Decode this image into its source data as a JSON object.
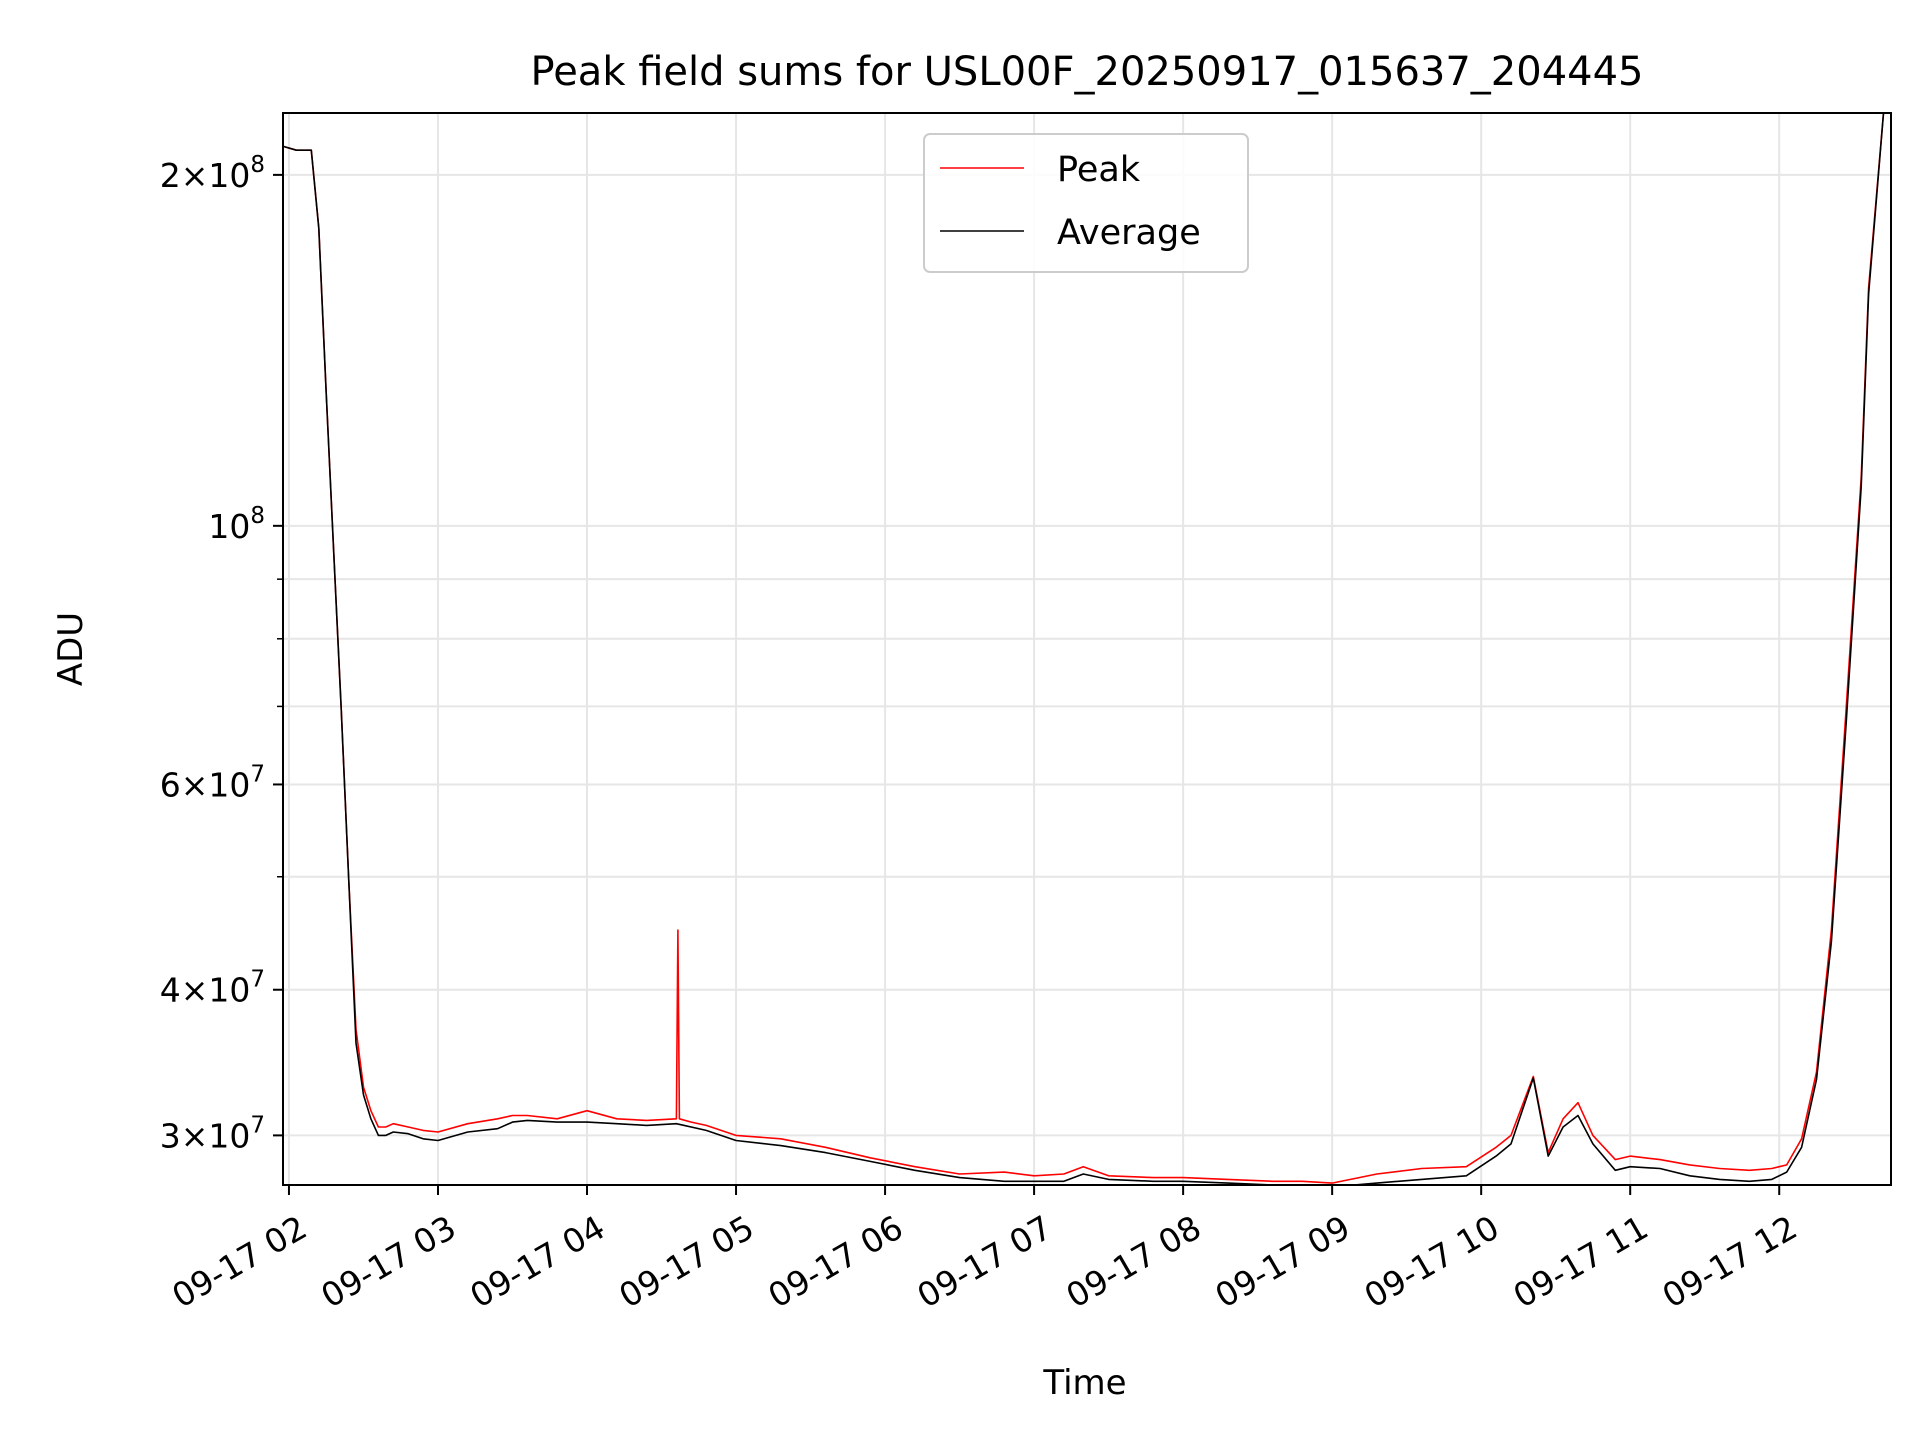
{
  "chart_data": {
    "type": "line",
    "title": "Peak field sums for USL00F_20250917_015637_204445",
    "xlabel": "Time",
    "ylabel": "ADU",
    "yscale": "log",
    "xlim": [
      1.96,
      12.75
    ],
    "ylim": [
      27200000,
      226000000
    ],
    "x_unit": "hours (09-17)",
    "x_ticks": [
      {
        "value": 2,
        "label": "09-17 02"
      },
      {
        "value": 3,
        "label": "09-17 03"
      },
      {
        "value": 4,
        "label": "09-17 04"
      },
      {
        "value": 5,
        "label": "09-17 05"
      },
      {
        "value": 6,
        "label": "09-17 06"
      },
      {
        "value": 7,
        "label": "09-17 07"
      },
      {
        "value": 8,
        "label": "09-17 08"
      },
      {
        "value": 9,
        "label": "09-17 09"
      },
      {
        "value": 10,
        "label": "09-17 10"
      },
      {
        "value": 11,
        "label": "09-17 11"
      },
      {
        "value": 12,
        "label": "09-17 12"
      }
    ],
    "y_major_ticks": [
      {
        "value": 30000000,
        "mantissa": "3",
        "exponent": "7"
      },
      {
        "value": 40000000,
        "mantissa": "4",
        "exponent": "7"
      },
      {
        "value": 60000000,
        "mantissa": "6",
        "exponent": "7"
      },
      {
        "value": 100000000,
        "mantissa": "",
        "exponent": "8"
      },
      {
        "value": 200000000,
        "mantissa": "2",
        "exponent": "8"
      }
    ],
    "y_minor_gridlines": [
      50000000,
      70000000,
      80000000,
      90000000
    ],
    "grid": true,
    "legend_position": "top-center",
    "series": [
      {
        "name": "Peak",
        "color": "#ff0000",
        "x": [
          1.94,
          2.05,
          2.15,
          2.2,
          2.25,
          2.3,
          2.35,
          2.4,
          2.45,
          2.5,
          2.55,
          2.6,
          2.65,
          2.7,
          2.8,
          2.9,
          3.0,
          3.2,
          3.4,
          3.5,
          3.6,
          3.8,
          4.0,
          4.2,
          4.4,
          4.6,
          4.61,
          4.62,
          4.7,
          4.8,
          5.0,
          5.3,
          5.6,
          5.9,
          6.2,
          6.5,
          6.8,
          7.0,
          7.2,
          7.33,
          7.5,
          7.8,
          8.0,
          8.3,
          8.6,
          8.8,
          9.0,
          9.3,
          9.6,
          9.9,
          10.1,
          10.2,
          10.35,
          10.45,
          10.55,
          10.65,
          10.75,
          10.9,
          11.0,
          11.2,
          11.4,
          11.6,
          11.8,
          11.95,
          12.05,
          12.15,
          12.25,
          12.35,
          12.45,
          12.55,
          12.6,
          12.7
        ],
        "y": [
          212000000,
          210000000,
          210000000,
          180000000,
          130000000,
          95000000,
          70000000,
          50000000,
          37000000,
          33000000,
          31500000,
          30500000,
          30500000,
          30700000,
          30500000,
          30300000,
          30200000,
          30700000,
          31000000,
          31200000,
          31200000,
          31000000,
          31500000,
          31000000,
          30900000,
          31000000,
          45000000,
          31000000,
          30800000,
          30600000,
          30000000,
          29800000,
          29300000,
          28700000,
          28200000,
          27800000,
          27900000,
          27700000,
          27800000,
          28200000,
          27700000,
          27600000,
          27600000,
          27500000,
          27400000,
          27400000,
          27300000,
          27800000,
          28100000,
          28200000,
          29300000,
          30000000,
          33700000,
          29000000,
          31000000,
          32000000,
          30000000,
          28600000,
          28800000,
          28600000,
          28300000,
          28100000,
          28000000,
          28100000,
          28300000,
          29800000,
          34000000,
          45000000,
          70000000,
          110000000,
          160000000,
          226000000
        ]
      },
      {
        "name": "Average",
        "color": "#000000",
        "x": [
          1.94,
          2.05,
          2.15,
          2.2,
          2.25,
          2.3,
          2.35,
          2.4,
          2.45,
          2.5,
          2.55,
          2.6,
          2.65,
          2.7,
          2.8,
          2.9,
          3.0,
          3.2,
          3.4,
          3.5,
          3.6,
          3.8,
          4.0,
          4.2,
          4.4,
          4.6,
          4.8,
          5.0,
          5.3,
          5.6,
          5.9,
          6.2,
          6.5,
          6.8,
          7.0,
          7.2,
          7.33,
          7.5,
          7.8,
          8.0,
          8.3,
          8.6,
          8.8,
          9.0,
          9.3,
          9.6,
          9.9,
          10.1,
          10.2,
          10.35,
          10.45,
          10.55,
          10.65,
          10.75,
          10.9,
          11.0,
          11.2,
          11.4,
          11.6,
          11.8,
          11.95,
          12.05,
          12.15,
          12.25,
          12.35,
          12.45,
          12.55,
          12.6,
          12.7
        ],
        "y": [
          212000000,
          210000000,
          210000000,
          180000000,
          130000000,
          95000000,
          70000000,
          50000000,
          36000000,
          32500000,
          31000000,
          30000000,
          30000000,
          30200000,
          30100000,
          29800000,
          29700000,
          30200000,
          30400000,
          30800000,
          30900000,
          30800000,
          30800000,
          30700000,
          30600000,
          30700000,
          30300000,
          29700000,
          29400000,
          29000000,
          28500000,
          28000000,
          27600000,
          27400000,
          27400000,
          27400000,
          27800000,
          27500000,
          27400000,
          27400000,
          27300000,
          27200000,
          27200000,
          27100000,
          27300000,
          27500000,
          27700000,
          28800000,
          29500000,
          33600000,
          28800000,
          30500000,
          31200000,
          29500000,
          28000000,
          28200000,
          28100000,
          27700000,
          27500000,
          27400000,
          27500000,
          27900000,
          29300000,
          33500000,
          44000000,
          68000000,
          108000000,
          158000000,
          226000000
        ]
      }
    ]
  }
}
